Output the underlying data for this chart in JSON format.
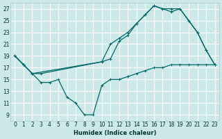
{
  "xlabel": "Humidex (Indice chaleur)",
  "bg_color": "#cce8e8",
  "grid_color": "#ffffff",
  "line_color": "#006666",
  "xlim": [
    -0.5,
    23.5
  ],
  "ylim": [
    8,
    28
  ],
  "xticks": [
    0,
    1,
    2,
    3,
    4,
    5,
    6,
    7,
    8,
    9,
    10,
    11,
    12,
    13,
    14,
    15,
    16,
    17,
    18,
    19,
    20,
    21,
    22,
    23
  ],
  "yticks": [
    9,
    11,
    13,
    15,
    17,
    19,
    21,
    23,
    25,
    27
  ],
  "series_bottom": {
    "x": [
      0,
      1,
      2,
      3,
      4,
      5,
      6,
      7,
      8,
      9,
      10,
      11,
      12,
      13,
      14,
      15,
      16,
      17,
      18,
      19,
      20,
      21,
      22,
      23
    ],
    "y": [
      19,
      17.5,
      16,
      14.5,
      14.5,
      15,
      12,
      11,
      9,
      9,
      14,
      15,
      15,
      15.5,
      16,
      16.5,
      17,
      17,
      17.5,
      17.5,
      17.5,
      17.5,
      17.5,
      17.5
    ]
  },
  "series_mid": {
    "x": [
      0,
      1,
      2,
      10,
      11,
      12,
      13,
      14,
      15,
      16,
      17,
      18,
      19,
      20,
      21,
      22,
      23
    ],
    "y": [
      19,
      17.5,
      16,
      18,
      18.5,
      21.5,
      22.5,
      24.5,
      26,
      27.5,
      27,
      26.5,
      27,
      25,
      23,
      20,
      17.5
    ]
  },
  "series_top": {
    "x": [
      0,
      1,
      2,
      3,
      10,
      11,
      12,
      13,
      14,
      15,
      16,
      17,
      18,
      19,
      20,
      21,
      22,
      23
    ],
    "y": [
      19,
      17.5,
      16,
      16,
      18,
      21,
      22,
      23,
      24.5,
      26,
      27.5,
      27,
      27,
      27,
      25,
      23,
      20,
      17.5
    ]
  }
}
